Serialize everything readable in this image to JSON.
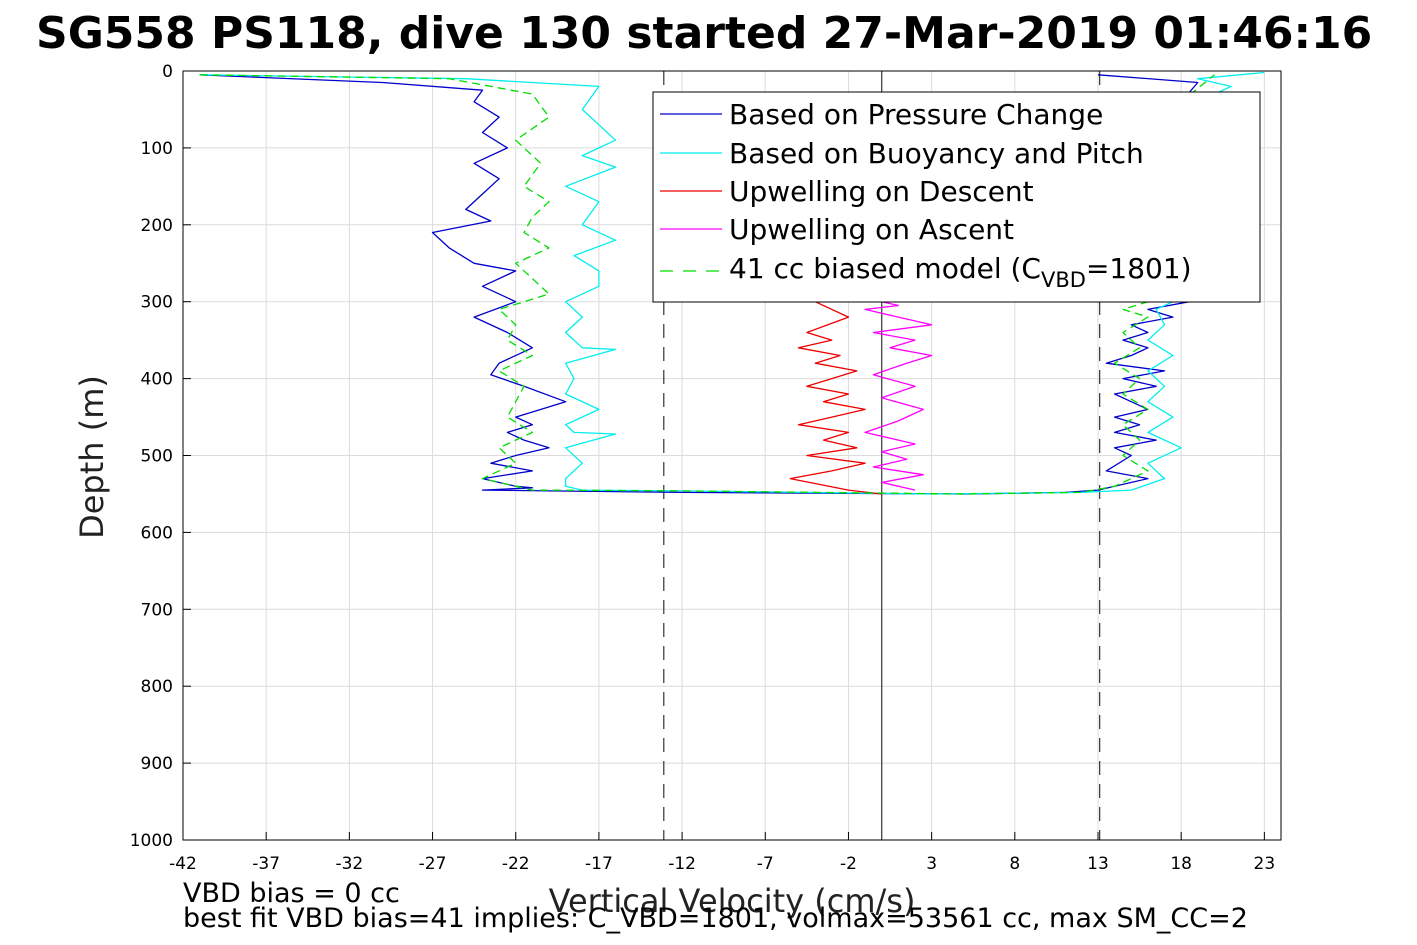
{
  "chart_data": {
    "type": "line",
    "title": "SG558 PS118, dive 130 started 27-Mar-2019 01:46:16",
    "xlabel": "Vertical Velocity (cm/s)",
    "ylabel": "Depth (m)",
    "xlim": [
      -42,
      24
    ],
    "ylim": [
      1000,
      0
    ],
    "y_reversed": true,
    "grid": true,
    "legend_placement": "top-right",
    "xticks": [
      "-42",
      "-37",
      "-32",
      "-27",
      "-22",
      "-17",
      "-12",
      "-7",
      "-2",
      "3",
      "8",
      "13",
      "18",
      "23"
    ],
    "yticks": [
      "0",
      "100",
      "200",
      "300",
      "400",
      "500",
      "600",
      "700",
      "800",
      "900",
      "1000"
    ],
    "reference_lines": [
      {
        "style": "solid",
        "x": 0
      },
      {
        "style": "dashed",
        "x": -13.1
      },
      {
        "style": "dashed",
        "x": 13.1
      }
    ],
    "legend": [
      {
        "label": "Based on Pressure Change",
        "color": "#0000cc",
        "dash": "solid"
      },
      {
        "label": "Based on Buoyancy and Pitch",
        "color": "#00eeee",
        "dash": "solid"
      },
      {
        "label": "Upwelling on Descent",
        "color": "#ee0000",
        "dash": "solid"
      },
      {
        "label": "Upwelling on Ascent",
        "color": "#ff00ff",
        "dash": "solid"
      },
      {
        "label_pre": "41 cc biased model (C",
        "label_sub": "VBD",
        "label_post": "=1801)",
        "color": "#00dd00",
        "dash": "dashed"
      }
    ],
    "series": [
      {
        "name": "Based on Pressure Change",
        "color": "#0000cc",
        "x": [
          -41,
          -30,
          -24,
          -24.5,
          -23,
          -24,
          -22.5,
          -24.5,
          -23,
          -24,
          -25,
          -23.5,
          -27,
          -26,
          -24.5,
          -22,
          -24,
          -22,
          -24.5,
          -22.5,
          -21,
          -23,
          -23.5,
          -21.5,
          -19,
          -22,
          -21,
          -22.5,
          -21.5,
          -20,
          -22,
          -23.5,
          -21,
          -24,
          -22,
          -21,
          -24,
          -12,
          5,
          11,
          13,
          14,
          16,
          13.5,
          15,
          14,
          16.5,
          14,
          15.5,
          14,
          16,
          15,
          14,
          16.5,
          14.5,
          17,
          13.5,
          15,
          16,
          14.5,
          16,
          15,
          17.5,
          16,
          18.5,
          18,
          19,
          13
        ],
        "y": [
          5,
          15,
          25,
          40,
          60,
          80,
          100,
          120,
          140,
          160,
          180,
          195,
          210,
          230,
          250,
          260,
          280,
          300,
          320,
          340,
          360,
          380,
          395,
          410,
          430,
          450,
          460,
          470,
          480,
          490,
          500,
          510,
          520,
          530,
          540,
          542,
          545,
          548,
          550,
          548,
          545,
          540,
          530,
          520,
          500,
          490,
          480,
          470,
          460,
          450,
          440,
          430,
          420,
          410,
          400,
          390,
          380,
          370,
          360,
          350,
          340,
          330,
          320,
          310,
          300,
          40,
          15,
          5
        ]
      },
      {
        "name": "Based on Buoyancy and Pitch",
        "color": "#00eeee",
        "x": [
          -41,
          -25,
          -17,
          -18,
          -17,
          -16,
          -18,
          -16,
          -19,
          -17,
          -18,
          -16,
          -18.5,
          -17,
          -17,
          -19,
          -18,
          -19,
          -18,
          -16,
          -19,
          -18.5,
          -19,
          -17,
          -19,
          -18.5,
          -16,
          -19,
          -18,
          -19,
          -19,
          -18,
          -12,
          3,
          12,
          15,
          17,
          16,
          18,
          16,
          17.5,
          16,
          17,
          16,
          17.5,
          16,
          17,
          16.5,
          17.5,
          17,
          18,
          20,
          21,
          19,
          23
        ],
        "y": [
          5,
          10,
          20,
          50,
          70,
          90,
          110,
          125,
          150,
          170,
          200,
          220,
          240,
          260,
          280,
          300,
          320,
          340,
          360,
          362,
          380,
          400,
          420,
          440,
          460,
          470,
          472,
          490,
          510,
          530,
          540,
          545,
          546,
          550,
          548,
          545,
          530,
          510,
          490,
          470,
          450,
          430,
          410,
          390,
          370,
          350,
          330,
          310,
          300,
          200,
          100,
          30,
          20,
          10,
          2
        ]
      },
      {
        "name": "Upwelling on Descent",
        "color": "#ee0000",
        "x": [
          -4,
          -2,
          -4.5,
          -3,
          -5,
          -2.5,
          -4,
          -1.5,
          -3,
          -4.5,
          -2,
          -3.5,
          -1,
          -3,
          -5,
          -2,
          -3.5,
          -1.5,
          -4.5,
          -1,
          -3,
          -5.5,
          -2,
          0
        ],
        "y": [
          300,
          320,
          340,
          350,
          360,
          370,
          380,
          390,
          400,
          410,
          420,
          430,
          440,
          450,
          460,
          470,
          480,
          490,
          500,
          510,
          520,
          530,
          545,
          550
        ]
      },
      {
        "name": "Upwelling on Ascent",
        "color": "#ff00ff",
        "x": [
          2,
          0,
          2.5,
          -0.5,
          1.5,
          0,
          2,
          -1,
          1,
          2.5,
          0,
          2,
          -0.5,
          1.5,
          3,
          0.5,
          2,
          -0.5,
          3,
          1,
          -1,
          1,
          0
        ],
        "y": [
          545,
          535,
          525,
          515,
          505,
          495,
          485,
          470,
          455,
          440,
          425,
          410,
          395,
          380,
          370,
          360,
          350,
          340,
          330,
          320,
          310,
          305,
          300
        ]
      },
      {
        "name": "41 cc biased model (CVBD=1801)",
        "color": "#00dd00",
        "dash": "dashed",
        "x": [
          -41,
          -26,
          -21,
          -20,
          -22,
          -20.5,
          -21.5,
          -20,
          -21,
          -21.5,
          -20,
          -22,
          -21,
          -20,
          -23,
          -22,
          -22.5,
          -21,
          -23,
          -21.5,
          -22,
          -22.5,
          -21,
          -23,
          -22,
          -24,
          -22,
          -21,
          -12,
          5,
          12,
          14,
          16,
          14.5,
          15.5,
          14.5,
          16,
          14.5,
          15.5,
          14,
          15.5,
          14.5,
          16,
          14.5,
          16,
          18,
          20
        ],
        "y": [
          5,
          10,
          30,
          60,
          90,
          120,
          150,
          170,
          190,
          210,
          230,
          250,
          270,
          290,
          310,
          330,
          350,
          370,
          390,
          410,
          430,
          450,
          470,
          490,
          510,
          530,
          540,
          545,
          546,
          550,
          548,
          540,
          520,
          500,
          480,
          460,
          440,
          420,
          400,
          380,
          360,
          340,
          320,
          310,
          300,
          40,
          5
        ]
      }
    ]
  },
  "notes": {
    "line1": "VBD bias = 0 cc",
    "line2": "best fit VBD bias=41 implies: C_VBD=1801, volmax=53561 cc, max SM_CC=2"
  }
}
